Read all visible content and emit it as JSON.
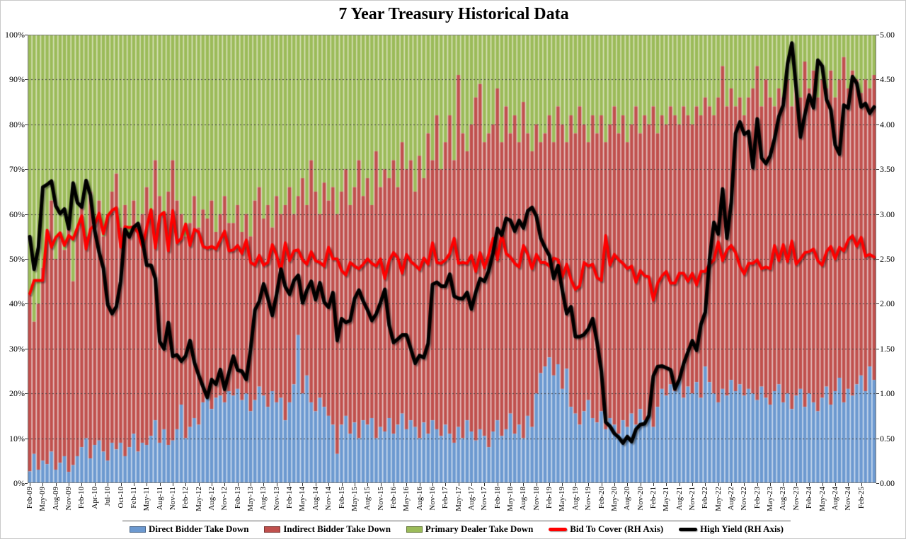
{
  "title": "7 Year Treasury Historical Data",
  "colors": {
    "direct": "#6C99D0",
    "indirect": "#C0504D",
    "primary_dealer": "#9BBB59",
    "bid_to_cover": "#FF0000",
    "high_yield": "#000000",
    "direct_light": "#BACFE9",
    "indirect_light": "#DFB0AE",
    "primary_dealer_light": "#CCD9A4",
    "gridline": "#3d3d3d",
    "plot_border": "#7f7f7f"
  },
  "legend": [
    {
      "label": "Direct Bidder Take Down",
      "marker": "square",
      "color": "#6C99D0"
    },
    {
      "label": "Indirect Bidder Take Down",
      "marker": "square",
      "color": "#C0504D"
    },
    {
      "label": "Primary Dealer Take Down",
      "marker": "square",
      "color": "#9BBB59"
    },
    {
      "label": "Bid To Cover (RH Axis)",
      "marker": "line",
      "color": "#FF0000"
    },
    {
      "label": "High Yield (RH Axis)",
      "marker": "line",
      "color": "#000000"
    }
  ],
  "y_axis_left": {
    "ticks": [
      "0%",
      "10%",
      "20%",
      "30%",
      "40%",
      "50%",
      "60%",
      "70%",
      "80%",
      "90%",
      "100%"
    ],
    "range": [
      0,
      100
    ]
  },
  "y_axis_right": {
    "ticks": [
      "0.00",
      "0.50",
      "1.00",
      "1.50",
      "2.00",
      "2.50",
      "3.00",
      "3.50",
      "4.00",
      "4.50",
      "5.00"
    ],
    "range": [
      0,
      5
    ]
  },
  "chart_data": {
    "type": "combo: 100%-stacked monthly bars (left axis, %) + two lines (right axis)",
    "x_note": "Monthly 7-Year Treasury auctions, Feb-2009 through May-2025 (196 bars); axis labels printed every 3rd bar",
    "bar_count": 196,
    "tick_every": 3,
    "x_tick_labels": [
      "Feb-09",
      "May-09",
      "Aug-09",
      "Nov-09",
      "Feb-10",
      "Apr-10",
      "Jul-10",
      "Oct-10",
      "Feb-11",
      "May-11",
      "Aug-11",
      "Nov-11",
      "Feb-12",
      "May-12",
      "Aug-12",
      "Nov-12",
      "Feb-13",
      "May-13",
      "Aug-13",
      "Nov-13",
      "Feb-14",
      "May-14",
      "Aug-14",
      "Nov-14",
      "Feb-15",
      "May-15",
      "Aug-15",
      "Nov-15",
      "Feb-16",
      "May-16",
      "Aug-16",
      "Nov-16",
      "Feb-17",
      "May-17",
      "Aug-17",
      "Nov-17",
      "Feb-18",
      "May-18",
      "Aug-18",
      "Nov-18",
      "Feb-19",
      "May-19",
      "Aug-19",
      "Nov-19",
      "Feb-20",
      "May-20",
      "Aug-20",
      "Nov-20",
      "Feb-21",
      "May-21",
      "Aug-21",
      "Nov-21",
      "Feb-22",
      "May-22",
      "Aug-22",
      "Nov-22",
      "Feb-23",
      "May-23",
      "Aug-23",
      "Nov-23",
      "Feb-24",
      "May-24",
      "Aug-24",
      "Nov-24",
      "Feb-25"
    ],
    "series": {
      "direct_bidder_pct": [
        2.6,
        6.5,
        3.0,
        5.0,
        4.2,
        7.0,
        3.0,
        4.5,
        6.0,
        2.5,
        4.0,
        6.0,
        8.0,
        10.0,
        5.5,
        8.5,
        9.5,
        7.0,
        5.0,
        9.0,
        7.5,
        9.0,
        6.0,
        8.0,
        11.0,
        7.0,
        9.0,
        8.5,
        10.5,
        14.0,
        9.0,
        12.0,
        8.5,
        9.5,
        12.0,
        17.5,
        10.0,
        12.5,
        14.5,
        13.0,
        18.0,
        20.0,
        16.5,
        19.0,
        19.5,
        18.0,
        20.5,
        19.5,
        21.0,
        18.5,
        20.0,
        16.0,
        18.5,
        21.5,
        19.5,
        17.0,
        20.5,
        18.0,
        19.0,
        14.0,
        18.0,
        22.0,
        33.0,
        20.0,
        24.0,
        18.0,
        16.0,
        19.0,
        17.0,
        15.0,
        13.0,
        6.5,
        13.0,
        15.0,
        11.0,
        13.5,
        10.0,
        14.0,
        13.0,
        14.5,
        10.0,
        12.5,
        11.5,
        14.5,
        11.0,
        13.0,
        15.5,
        12.0,
        14.0,
        12.5,
        10.0,
        13.5,
        11.0,
        14.0,
        12.0,
        10.5,
        13.0,
        11.0,
        9.0,
        12.5,
        10.0,
        14.0,
        11.5,
        9.5,
        12.0,
        10.5,
        8.0,
        11.5,
        14.0,
        10.5,
        12.0,
        15.5,
        11.0,
        13.0,
        10.0,
        15.0,
        12.5,
        20.0,
        24.5,
        26.0,
        28.0,
        24.0,
        26.5,
        21.0,
        25.5,
        17.0,
        15.5,
        13.0,
        16.0,
        18.5,
        14.5,
        13.5,
        16.0,
        12.0,
        14.5,
        13.0,
        11.0,
        14.0,
        12.5,
        15.5,
        13.0,
        16.5,
        14.0,
        15.5,
        12.5,
        17.0,
        21.0,
        19.5,
        22.0,
        20.5,
        23.0,
        19.0,
        21.5,
        20.0,
        22.5,
        19.0,
        26.0,
        22.5,
        20.0,
        18.0,
        21.0,
        19.5,
        23.0,
        20.5,
        22.0,
        19.5,
        21.0,
        20.0,
        18.5,
        21.5,
        19.0,
        17.5,
        20.5,
        22.0,
        18.0,
        20.0,
        16.5,
        19.5,
        21.0,
        17.0,
        20.0,
        18.0,
        16.0,
        19.0,
        21.5,
        17.5,
        20.5,
        23.5,
        18.0,
        21.0,
        19.5,
        22.0,
        24.0,
        20.5,
        26.0,
        23.0
      ],
      "indirect_bidder_pct": [
        39.4,
        29.5,
        37.0,
        43.0,
        50.8,
        56.0,
        47.0,
        51.5,
        46.0,
        55.5,
        41.0,
        51.0,
        54.0,
        45.0,
        59.5,
        49.5,
        53.5,
        48.0,
        55.0,
        56.0,
        61.5,
        48.0,
        56.0,
        47.0,
        52.0,
        51.0,
        51.0,
        57.5,
        50.5,
        58.0,
        55.0,
        48.0,
        56.5,
        62.5,
        51.0,
        42.5,
        45.0,
        45.5,
        49.5,
        44.0,
        43.0,
        39.0,
        46.5,
        37.0,
        40.5,
        46.0,
        37.5,
        38.5,
        41.0,
        37.5,
        40.0,
        39.0,
        44.5,
        44.5,
        39.5,
        45.0,
        36.5,
        46.0,
        41.0,
        48.0,
        48.0,
        38.0,
        31.0,
        48.0,
        38.0,
        54.0,
        49.0,
        41.0,
        50.0,
        48.0,
        53.0,
        53.5,
        52.0,
        55.0,
        51.0,
        52.5,
        62.0,
        50.0,
        55.0,
        47.5,
        64.0,
        53.5,
        58.5,
        53.5,
        61.0,
        53.0,
        60.5,
        58.0,
        58.0,
        52.5,
        63.0,
        54.5,
        67.0,
        58.0,
        70.0,
        59.5,
        63.0,
        71.0,
        63.0,
        78.5,
        68.0,
        60.0,
        68.5,
        76.5,
        77.0,
        65.5,
        70.0,
        68.5,
        74.0,
        65.5,
        72.0,
        62.5,
        71.0,
        63.0,
        75.0,
        63.0,
        61.5,
        60.0,
        51.5,
        52.0,
        54.0,
        52.0,
        57.5,
        59.0,
        50.5,
        65.0,
        62.5,
        71.0,
        64.0,
        57.5,
        67.5,
        64.5,
        66.0,
        64.0,
        65.5,
        71.0,
        67.0,
        68.0,
        63.5,
        64.5,
        71.0,
        61.5,
        68.0,
        64.5,
        71.5,
        61.0,
        61.0,
        60.5,
        62.0,
        61.5,
        57.0,
        65.0,
        60.5,
        60.0,
        61.5,
        63.0,
        60.0,
        61.5,
        62.0,
        68.0,
        72.0,
        64.5,
        65.0,
        63.5,
        64.0,
        62.5,
        65.0,
        68.0,
        74.5,
        62.5,
        71.0,
        68.5,
        63.5,
        66.0,
        68.0,
        70.0,
        67.5,
        68.5,
        65.0,
        77.0,
        68.0,
        74.0,
        70.0,
        71.0,
        66.5,
        74.5,
        65.5,
        66.5,
        77.0,
        67.0,
        72.5,
        68.0,
        63.0,
        69.5,
        62.0,
        68.0
      ],
      "primary_dealer_pct": "remainder: 100 - direct_bidder_pct - indirect_bidder_pct",
      "bid_to_cover": [
        2.11,
        2.26,
        2.26,
        2.26,
        2.82,
        2.63,
        2.74,
        2.79,
        2.65,
        2.76,
        2.72,
        2.85,
        2.98,
        2.61,
        2.83,
        2.88,
        3.01,
        2.78,
        2.98,
        3.04,
        3.07,
        2.63,
        2.86,
        2.85,
        2.86,
        2.79,
        2.63,
        2.85,
        3.05,
        2.62,
        2.98,
        3.02,
        2.59,
        3.04,
        2.68,
        2.73,
        2.89,
        2.65,
        2.83,
        2.8,
        2.64,
        2.62,
        2.64,
        2.61,
        2.71,
        2.81,
        2.59,
        2.6,
        2.65,
        2.56,
        2.71,
        2.46,
        2.43,
        2.54,
        2.43,
        2.46,
        2.66,
        2.54,
        2.36,
        2.68,
        2.48,
        2.59,
        2.6,
        2.49,
        2.44,
        2.58,
        2.48,
        2.46,
        2.42,
        2.63,
        2.5,
        2.5,
        2.37,
        2.32,
        2.46,
        2.42,
        2.39,
        2.44,
        2.5,
        2.45,
        2.42,
        2.5,
        2.28,
        2.48,
        2.57,
        2.51,
        2.34,
        2.55,
        2.47,
        2.43,
        2.38,
        2.51,
        2.44,
        2.68,
        2.46,
        2.45,
        2.49,
        2.56,
        2.73,
        2.45,
        2.46,
        2.45,
        2.54,
        2.36,
        2.57,
        2.4,
        2.55,
        2.73,
        2.49,
        2.79,
        2.56,
        2.52,
        2.45,
        2.41,
        2.65,
        2.55,
        2.39,
        2.55,
        2.46,
        2.46,
        2.42,
        2.51,
        2.49,
        2.3,
        2.44,
        2.27,
        2.16,
        2.2,
        2.46,
        2.42,
        2.44,
        2.29,
        2.26,
        2.76,
        2.43,
        2.55,
        2.49,
        2.45,
        2.39,
        2.42,
        2.24,
        2.37,
        2.31,
        2.3,
        2.04,
        2.23,
        2.31,
        2.36,
        2.23,
        2.23,
        2.34,
        2.34,
        2.25,
        2.34,
        2.21,
        2.36,
        2.36,
        2.44,
        2.49,
        2.69,
        2.48,
        2.6,
        2.65,
        2.57,
        2.42,
        2.33,
        2.45,
        2.45,
        2.49,
        2.39,
        2.41,
        2.39,
        2.65,
        2.48,
        2.66,
        2.47,
        2.7,
        2.44,
        2.5,
        2.57,
        2.58,
        2.61,
        2.48,
        2.43,
        2.58,
        2.64,
        2.5,
        2.63,
        2.59,
        2.71,
        2.76,
        2.64,
        2.74,
        2.53,
        2.55,
        2.52
      ],
      "high_yield": [
        2.748,
        2.384,
        2.63,
        3.3,
        3.329,
        3.369,
        3.092,
        3.005,
        3.056,
        2.835,
        3.345,
        3.127,
        3.078,
        3.374,
        3.21,
        2.815,
        2.575,
        2.394,
        1.989,
        1.89,
        1.97,
        2.253,
        2.83,
        2.744,
        2.854,
        2.895,
        2.712,
        2.429,
        2.43,
        2.28,
        1.58,
        1.496,
        1.791,
        1.415,
        1.43,
        1.359,
        1.418,
        1.59,
        1.347,
        1.203,
        1.075,
        0.954,
        1.155,
        1.101,
        1.267,
        1.045,
        1.233,
        1.416,
        1.26,
        1.248,
        1.155,
        1.496,
        1.932,
        2.026,
        2.221,
        2.058,
        1.87,
        2.106,
        2.385,
        2.19,
        2.105,
        2.258,
        2.317,
        2.01,
        2.152,
        2.25,
        2.045,
        2.235,
        2.018,
        1.96,
        2.125,
        1.59,
        1.834,
        1.792,
        1.813,
        2.055,
        2.153,
        2.029,
        1.93,
        1.813,
        1.885,
        2.013,
        2.161,
        1.759,
        1.568,
        1.606,
        1.652,
        1.652,
        1.497,
        1.336,
        1.423,
        1.4,
        1.557,
        2.215,
        2.24,
        2.197,
        2.197,
        2.33,
        2.084,
        2.06,
        2.056,
        2.126,
        1.941,
        2.13,
        2.28,
        2.25,
        2.37,
        2.565,
        2.839,
        2.766,
        2.952,
        2.93,
        2.809,
        2.93,
        2.844,
        3.034,
        3.074,
        2.974,
        2.731,
        2.625,
        2.538,
        2.281,
        2.426,
        2.144,
        1.889,
        1.967,
        1.632,
        1.633,
        1.657,
        1.719,
        1.835,
        1.57,
        1.247,
        0.68,
        0.634,
        0.553,
        0.511,
        0.446,
        0.519,
        0.462,
        0.6,
        0.653,
        0.662,
        0.754,
        1.195,
        1.3,
        1.306,
        1.285,
        1.264,
        1.05,
        1.155,
        1.332,
        1.461,
        1.588,
        1.48,
        1.769,
        1.905,
        2.499,
        2.908,
        2.777,
        3.28,
        2.73,
        3.13,
        3.898,
        4.027,
        3.89,
        3.921,
        3.517,
        4.062,
        3.626,
        3.563,
        3.65,
        3.839,
        4.087,
        4.212,
        4.673,
        4.908,
        4.399,
        3.859,
        4.109,
        4.327,
        4.185,
        4.716,
        4.65,
        4.276,
        4.162,
        3.77,
        3.668,
        4.215,
        4.183,
        4.532,
        4.457,
        4.194,
        4.233,
        4.123,
        4.194
      ]
    }
  }
}
